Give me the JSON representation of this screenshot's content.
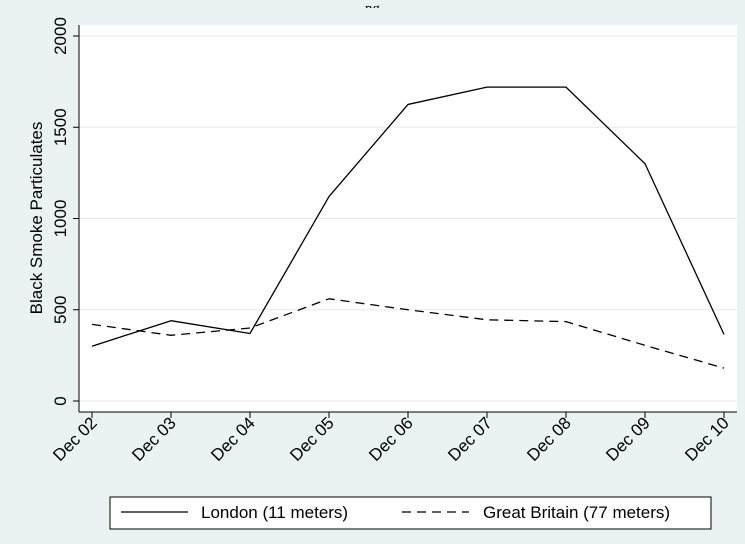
{
  "title": "...ng...",
  "chart_data": {
    "type": "line",
    "categories": [
      "Dec 02",
      "Dec 03",
      "Dec 04",
      "Dec 05",
      "Dec 06",
      "Dec 07",
      "Dec 08",
      "Dec 09",
      "Dec 10"
    ],
    "series": [
      {
        "name": "London (11 meters)",
        "values": [
          300,
          440,
          370,
          1120,
          1625,
          1720,
          1720,
          1300,
          365
        ],
        "style": "solid",
        "color": "#000000"
      },
      {
        "name": "Great Britain (77 meters)",
        "values": [
          420,
          360,
          400,
          560,
          500,
          445,
          435,
          305,
          180
        ],
        "style": "dashed",
        "color": "#000000"
      }
    ],
    "ylabel": "Black Smoke Particulates",
    "xlabel": "",
    "yticks": [
      0,
      500,
      1000,
      1500,
      2000
    ],
    "ylim": [
      0,
      2000
    ],
    "grid": true,
    "legend_position": "bottom"
  }
}
